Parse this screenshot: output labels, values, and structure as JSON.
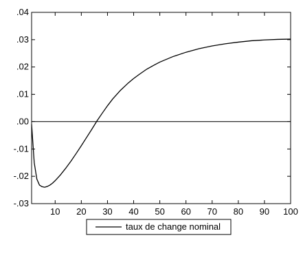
{
  "chart_data": {
    "type": "line",
    "title": "",
    "xlabel": "",
    "ylabel": "",
    "xlim": [
      1,
      100
    ],
    "ylim": [
      -0.03,
      0.04
    ],
    "x_ticks": [
      10,
      20,
      30,
      40,
      50,
      60,
      70,
      80,
      90,
      100
    ],
    "x_tick_labels": [
      "10",
      "20",
      "30",
      "40",
      "50",
      "60",
      "70",
      "80",
      "90",
      "100"
    ],
    "y_ticks": [
      -0.03,
      -0.02,
      -0.01,
      0.0,
      0.01,
      0.02,
      0.03,
      0.04
    ],
    "y_tick_labels": [
      "-.03",
      "-.02",
      "-.01",
      ".00",
      ".01",
      ".02",
      ".03",
      ".04"
    ],
    "zero_line": true,
    "grid": false,
    "legend_position": "bottom-center",
    "line_color": "#000000",
    "series": [
      {
        "name": "taux de change nominal",
        "x": [
          1,
          2,
          3,
          4,
          5,
          6,
          7,
          8,
          9,
          10,
          12,
          14,
          16,
          18,
          20,
          22,
          24,
          26,
          28,
          30,
          32,
          35,
          38,
          40,
          42,
          45,
          48,
          50,
          55,
          60,
          65,
          70,
          75,
          80,
          85,
          90,
          95,
          100
        ],
        "values": [
          -0.001,
          -0.015,
          -0.021,
          -0.0232,
          -0.0238,
          -0.024,
          -0.0237,
          -0.0232,
          -0.0225,
          -0.0216,
          -0.0195,
          -0.0171,
          -0.0145,
          -0.0117,
          -0.0088,
          -0.0058,
          -0.0028,
          0.0003,
          0.0031,
          0.0058,
          0.0083,
          0.0115,
          0.0142,
          0.0158,
          0.0172,
          0.0192,
          0.0208,
          0.0218,
          0.0238,
          0.0254,
          0.0267,
          0.0277,
          0.0285,
          0.0291,
          0.0296,
          0.0299,
          0.0301,
          0.0302
        ]
      }
    ]
  }
}
